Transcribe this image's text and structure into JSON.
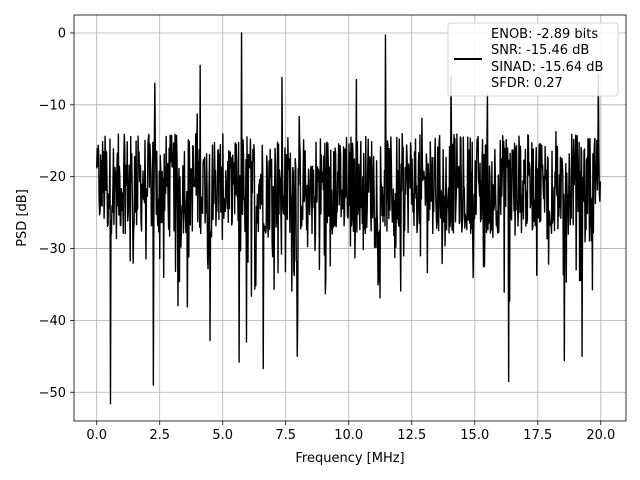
{
  "chart_data": {
    "type": "line",
    "title": "",
    "xlabel": "Frequency [MHz]",
    "ylabel": "PSD [dB]",
    "xlim": [
      -0.9,
      21.0
    ],
    "ylim": [
      -54,
      2.5
    ],
    "grid": true,
    "x_ticks": [
      0.0,
      2.5,
      5.0,
      7.5,
      10.0,
      12.5,
      15.0,
      17.5,
      20.0
    ],
    "x_tick_labels": [
      "0.0",
      "2.5",
      "5.0",
      "7.5",
      "10.0",
      "12.5",
      "15.0",
      "17.5",
      "20.0"
    ],
    "y_ticks": [
      0,
      -10,
      -20,
      -30,
      -40,
      -50
    ],
    "y_tick_labels": [
      "0",
      "−10",
      "−20",
      "−30",
      "−40",
      "−50"
    ],
    "legend": {
      "placement": "upper-right",
      "lines": [
        "ENOB: -2.89 bits",
        "SNR: -15.46 dB",
        "SINAD: -15.64 dB",
        "SFDR: 0.27"
      ]
    },
    "series": [
      {
        "color": "#000000",
        "x_start": 0.0,
        "x_end": 20.0,
        "n_points": 1024,
        "typical_low": -28,
        "typical_high": -14,
        "spikes": [
          {
            "x": 0.55,
            "y": -51.6
          },
          {
            "x": 2.25,
            "y": -49.0
          },
          {
            "x": 4.5,
            "y": -42.8
          },
          {
            "x": 5.65,
            "y": -45.8
          },
          {
            "x": 5.95,
            "y": -43.0
          },
          {
            "x": 6.6,
            "y": -46.7
          },
          {
            "x": 7.95,
            "y": -45.0
          },
          {
            "x": 16.35,
            "y": -48.5
          },
          {
            "x": 18.55,
            "y": -45.6
          },
          {
            "x": 19.25,
            "y": -45.0
          },
          {
            "x": 5.75,
            "y": 0.0
          },
          {
            "x": 11.45,
            "y": -0.3
          },
          {
            "x": 4.1,
            "y": -4.5
          },
          {
            "x": 7.35,
            "y": -6.2
          },
          {
            "x": 10.3,
            "y": -6.5
          },
          {
            "x": 14.05,
            "y": -6.0
          },
          {
            "x": 19.9,
            "y": -5.8
          },
          {
            "x": 2.3,
            "y": -7.0
          },
          {
            "x": 15.5,
            "y": -8.5
          }
        ]
      }
    ]
  }
}
